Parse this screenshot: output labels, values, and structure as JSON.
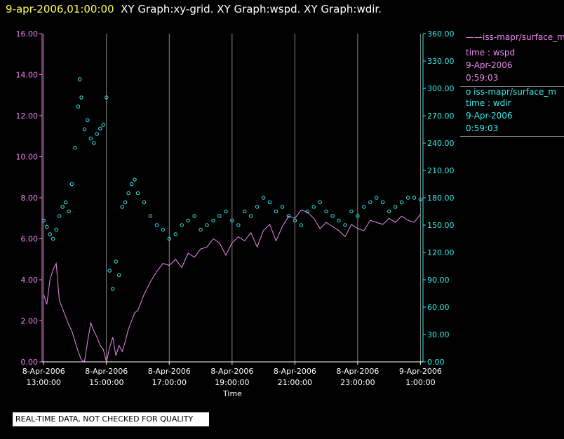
{
  "header": {
    "date": "9-apr-2006,01:00:00",
    "titles": "XY Graph:xy-grid.  XY Graph:wspd.  XY Graph:wdir."
  },
  "legend": {
    "wspd": {
      "name": "iss-mapr/surface_m",
      "line1": "time : wspd",
      "line2": "9-Apr-2006",
      "line3": "0:59:03"
    },
    "wdir": {
      "name": "iss-mapr/surface_m",
      "line1": "time : wdir",
      "line2": "9-Apr-2006",
      "line3": "0:59:03"
    }
  },
  "disclaimer": "REAL-TIME DATA, NOT CHECKED FOR QUALITY",
  "colors": {
    "wspd": "#ee88ee",
    "wdir": "#33eeee",
    "grid": "#888888",
    "header_date": "#ffff55"
  },
  "chart_data": {
    "type": "line",
    "xlabel": "Time",
    "xlim": [
      12.95,
      25.08
    ],
    "x_ticks": [
      {
        "hour": 13,
        "date": "8-Apr-2006",
        "time": "13:00:00"
      },
      {
        "hour": 15,
        "date": "8-Apr-2006",
        "time": "15:00:00"
      },
      {
        "hour": 17,
        "date": "8-Apr-2006",
        "time": "17:00:00"
      },
      {
        "hour": 19,
        "date": "8-Apr-2006",
        "time": "19:00:00"
      },
      {
        "hour": 21,
        "date": "8-Apr-2006",
        "time": "21:00:00"
      },
      {
        "hour": 23,
        "date": "8-Apr-2006",
        "time": "23:00:00"
      },
      {
        "hour": 25,
        "date": "9-Apr-2006",
        "time": "1:00:00"
      }
    ],
    "y_left": {
      "ylim": [
        0,
        16
      ],
      "ticks": [
        "0.00",
        "2.00",
        "4.00",
        "6.00",
        "8.00",
        "10.00",
        "12.00",
        "14.00",
        "16.00"
      ]
    },
    "y_right": {
      "ylim": [
        0,
        360
      ],
      "ticks": [
        "0.00",
        "30.00",
        "60.00",
        "90.00",
        "120.00",
        "150.00",
        "180.00",
        "210.00",
        "240.00",
        "270.00",
        "300.00",
        "330.00",
        "360.00"
      ]
    },
    "grid": true,
    "series": [
      {
        "name": "iss-mapr/surface_m",
        "axis": "left",
        "style": "line",
        "x": [
          13.0,
          13.1,
          13.2,
          13.3,
          13.4,
          13.5,
          13.6,
          13.7,
          13.8,
          13.9,
          14.0,
          14.1,
          14.2,
          14.3,
          14.4,
          14.5,
          14.6,
          14.7,
          14.8,
          14.9,
          15.0,
          15.1,
          15.2,
          15.3,
          15.4,
          15.5,
          15.6,
          15.7,
          15.8,
          15.9,
          16.0,
          16.2,
          16.4,
          16.6,
          16.8,
          17.0,
          17.2,
          17.4,
          17.6,
          17.8,
          18.0,
          18.2,
          18.4,
          18.6,
          18.8,
          19.0,
          19.2,
          19.4,
          19.6,
          19.8,
          20.0,
          20.2,
          20.4,
          20.6,
          20.8,
          21.0,
          21.2,
          21.4,
          21.6,
          21.8,
          22.0,
          22.2,
          22.4,
          22.6,
          22.8,
          23.0,
          23.2,
          23.4,
          23.6,
          23.8,
          24.0,
          24.2,
          24.4,
          24.6,
          24.8,
          25.0
        ],
        "values": [
          3.3,
          2.8,
          4.0,
          4.5,
          4.8,
          3.0,
          2.6,
          2.2,
          1.8,
          1.5,
          1.0,
          0.5,
          0.1,
          0.0,
          1.0,
          1.9,
          1.5,
          1.2,
          0.8,
          0.6,
          0.0,
          0.7,
          1.2,
          0.3,
          0.8,
          0.5,
          1.0,
          1.6,
          2.0,
          2.4,
          2.5,
          3.3,
          3.9,
          4.4,
          4.8,
          4.7,
          5.0,
          4.6,
          5.3,
          5.1,
          5.5,
          5.6,
          6.0,
          5.8,
          5.2,
          5.8,
          6.1,
          5.9,
          6.3,
          5.6,
          6.4,
          6.7,
          5.9,
          6.6,
          7.1,
          7.0,
          7.4,
          7.3,
          7.0,
          6.5,
          6.8,
          6.6,
          6.4,
          6.1,
          6.7,
          6.5,
          6.4,
          6.9,
          6.8,
          6.7,
          7.0,
          6.8,
          7.1,
          6.9,
          6.8,
          7.2
        ]
      },
      {
        "name": "iss-mapr/surface_m",
        "axis": "right",
        "style": "scatter",
        "x": [
          13.0,
          13.1,
          13.2,
          13.3,
          13.4,
          13.5,
          13.6,
          13.7,
          13.8,
          13.9,
          14.0,
          14.1,
          14.15,
          14.2,
          14.3,
          14.4,
          14.5,
          14.6,
          14.7,
          14.8,
          14.9,
          15.0,
          15.1,
          15.2,
          15.3,
          15.4,
          15.5,
          15.6,
          15.7,
          15.8,
          15.9,
          16.0,
          16.2,
          16.4,
          16.6,
          16.8,
          17.0,
          17.2,
          17.4,
          17.6,
          17.8,
          18.0,
          18.2,
          18.4,
          18.6,
          18.8,
          19.0,
          19.2,
          19.4,
          19.6,
          19.8,
          20.0,
          20.2,
          20.4,
          20.6,
          20.8,
          21.0,
          21.2,
          21.4,
          21.6,
          21.8,
          22.0,
          22.2,
          22.4,
          22.6,
          22.8,
          23.0,
          23.2,
          23.4,
          23.6,
          23.8,
          24.0,
          24.2,
          24.4,
          24.6,
          24.8,
          25.0
        ],
        "values": [
          155,
          148,
          140,
          135,
          145,
          160,
          170,
          175,
          165,
          195,
          235,
          280,
          310,
          290,
          255,
          265,
          245,
          240,
          250,
          256,
          260,
          290,
          100,
          80,
          110,
          95,
          170,
          175,
          185,
          195,
          200,
          185,
          175,
          160,
          150,
          145,
          135,
          140,
          150,
          155,
          160,
          145,
          150,
          155,
          160,
          165,
          155,
          150,
          165,
          160,
          170,
          180,
          175,
          165,
          170,
          160,
          155,
          150,
          165,
          170,
          175,
          165,
          160,
          155,
          150,
          165,
          160,
          170,
          175,
          180,
          175,
          165,
          170,
          175,
          180,
          180,
          178
        ]
      }
    ]
  }
}
